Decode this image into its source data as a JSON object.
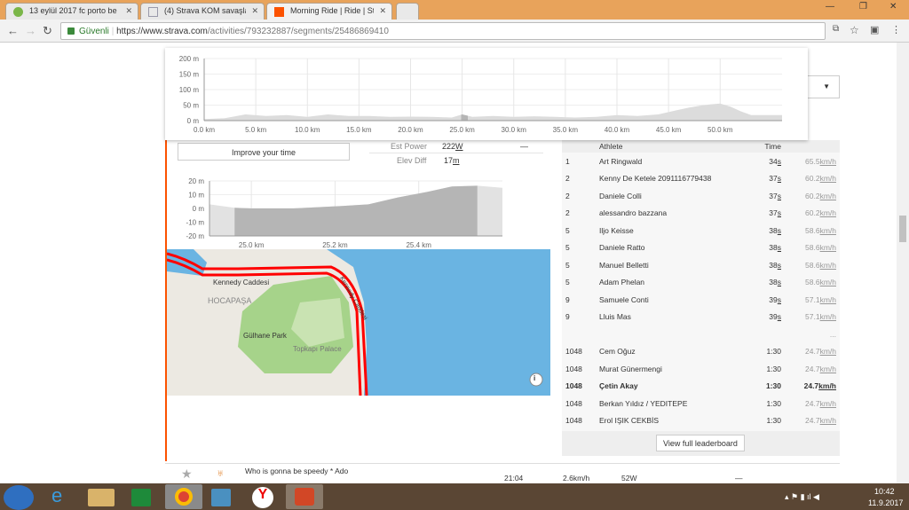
{
  "browser": {
    "tabs": [
      {
        "title": "13 eylül 2017 fc porto be",
        "icon": "tree-icon"
      },
      {
        "title": "(4) Strava KOM savaşları",
        "icon": "bike-icon"
      },
      {
        "title": "Morning Ride | Ride | Stra",
        "icon": "strava-icon",
        "active": true
      }
    ],
    "secure_label": "Güvenli",
    "url_host": "https://www.strava.com",
    "url_path": "/activities/793232887/segments/25486869410"
  },
  "activity_chart": {
    "type": "area",
    "y_ticks": [
      "200 m",
      "150 m",
      "100 m",
      "50 m",
      "0 m"
    ],
    "x_ticks": [
      "0.0 km",
      "5.0 km",
      "10.0 km",
      "15.0 km",
      "20.0 km",
      "25.0 km",
      "30.0 km",
      "35.0 km",
      "40.0 km",
      "45.0 km",
      "50.0 km"
    ],
    "ylim": [
      0,
      200
    ],
    "xlim": [
      0,
      56
    ],
    "x": [
      0,
      2,
      4,
      6,
      8,
      10,
      12,
      14,
      16,
      18,
      20,
      22,
      24,
      25,
      26,
      28,
      30,
      32,
      34,
      36,
      38,
      40,
      42,
      44,
      46,
      47,
      48,
      49,
      50,
      51,
      52,
      53,
      54,
      55,
      56
    ],
    "y": [
      5,
      8,
      20,
      15,
      18,
      12,
      20,
      15,
      15,
      12,
      13,
      12,
      10,
      20,
      12,
      15,
      12,
      14,
      12,
      10,
      12,
      18,
      15,
      20,
      35,
      42,
      48,
      52,
      55,
      45,
      30,
      18,
      18,
      18,
      18
    ],
    "highlight_km": [
      24.9,
      25.55
    ]
  },
  "segment": {
    "improve_button": "Improve your time",
    "stats": [
      {
        "label": "Est Power",
        "value": "222",
        "unit": "W",
        "extra": "—"
      },
      {
        "label": "Elev Diff",
        "value": "17",
        "unit": "m"
      }
    ]
  },
  "segment_chart": {
    "type": "area",
    "y_ticks": [
      "20 m",
      "10 m",
      "0 m",
      "-10 m",
      "-20 m"
    ],
    "x_ticks": [
      "25.0 km",
      "25.2 km",
      "25.4 km"
    ],
    "ylim": [
      -20,
      20
    ],
    "xlim": [
      24.9,
      25.6
    ],
    "x": [
      24.9,
      24.96,
      25.0,
      25.1,
      25.2,
      25.28,
      25.35,
      25.42,
      25.48,
      25.54,
      25.6
    ],
    "y": [
      3,
      0.5,
      0,
      0,
      1.5,
      3,
      8,
      12,
      16,
      16.5,
      15
    ],
    "highlight_km": [
      24.96,
      25.54
    ]
  },
  "map": {
    "labels": [
      "Kennedy Caddesi",
      "Kennedy Caddesi",
      "HOCAPAŞA",
      "Gülhane Park",
      "Topkapı Palace"
    ],
    "route_color": "#ff0000"
  },
  "leaderboard": {
    "headers": {
      "rank": "",
      "athlete": "Athlete",
      "time": "Time",
      "speed": ""
    },
    "rows": [
      {
        "rank": "1",
        "name": "Art Ringwald",
        "time": "34",
        "tu": "s",
        "speed": "65.5",
        "su": "km/h"
      },
      {
        "rank": "2",
        "name": "Kenny De Ketele 2091116779438",
        "time": "37",
        "tu": "s",
        "speed": "60.2",
        "su": "km/h"
      },
      {
        "rank": "2",
        "name": "Daniele Colli",
        "time": "37",
        "tu": "s",
        "speed": "60.2",
        "su": "km/h"
      },
      {
        "rank": "2",
        "name": "alessandro bazzana",
        "time": "37",
        "tu": "s",
        "speed": "60.2",
        "su": "km/h"
      },
      {
        "rank": "5",
        "name": "Iljo Keisse",
        "time": "38",
        "tu": "s",
        "speed": "58.6",
        "su": "km/h"
      },
      {
        "rank": "5",
        "name": "Daniele Ratto",
        "time": "38",
        "tu": "s",
        "speed": "58.6",
        "su": "km/h"
      },
      {
        "rank": "5",
        "name": "Manuel Belletti",
        "time": "38",
        "tu": "s",
        "speed": "58.6",
        "su": "km/h"
      },
      {
        "rank": "5",
        "name": "Adam Phelan",
        "time": "38",
        "tu": "s",
        "speed": "58.6",
        "su": "km/h"
      },
      {
        "rank": "9",
        "name": "Samuele Conti",
        "time": "39",
        "tu": "s",
        "speed": "57.1",
        "su": "km/h"
      },
      {
        "rank": "9",
        "name": "Lluis Mas",
        "time": "39",
        "tu": "s",
        "speed": "57.1",
        "su": "km/h"
      }
    ],
    "ellipsis": "...",
    "rows2": [
      {
        "rank": "1048",
        "name": "Cem Oğuz",
        "time": "1:30",
        "tu": "",
        "speed": "24.7",
        "su": "km/h"
      },
      {
        "rank": "1048",
        "name": "Murat Günermengi",
        "time": "1:30",
        "tu": "",
        "speed": "24.7",
        "su": "km/h"
      },
      {
        "rank": "1048",
        "name": "Çetin Akay",
        "time": "1:30",
        "tu": "",
        "speed": "24.7",
        "su": "km/h",
        "me": true
      },
      {
        "rank": "1048",
        "name": "Berkan Yıldız / YEDITEPE",
        "time": "1:30",
        "tu": "",
        "speed": "24.7",
        "su": "km/h"
      },
      {
        "rank": "1048",
        "name": "Erol IŞIK CEKBİS",
        "time": "1:30",
        "tu": "",
        "speed": "24.7",
        "su": "km/h"
      }
    ],
    "view_full": "View full leaderboard"
  },
  "next_segment": {
    "name": "Who is gonna be speedy * Ado",
    "time": "21:04",
    "speed": "2.6km/h",
    "power": "52W",
    "dash": "—"
  },
  "taskbar": {
    "time": "10:42",
    "date": "11.9.2017"
  },
  "colors": {
    "accent": "#fc5200",
    "tabbar": "#e8a35b",
    "elevation": "#bdbdbd"
  }
}
